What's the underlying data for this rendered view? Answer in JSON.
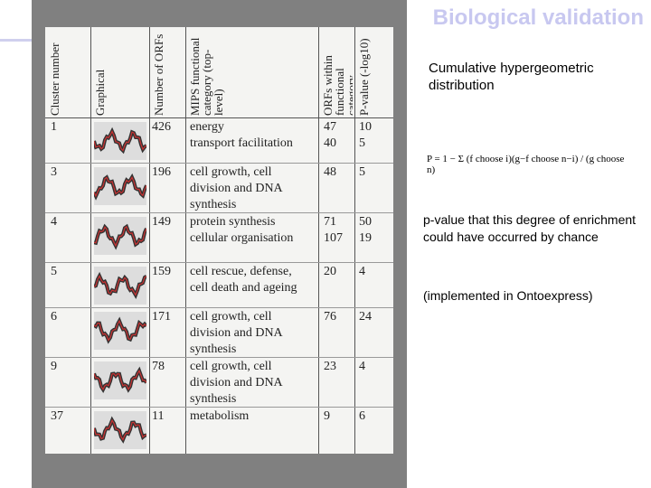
{
  "header": {
    "title": "Biological validation"
  },
  "table": {
    "columns": [
      "Cluster number",
      "Graphical",
      "Number of ORFs",
      "MIPS functional category (top-level)",
      "ORFs within functional category",
      "P-value (-log10)"
    ],
    "rows": [
      [
        "1",
        [
          "426"
        ],
        [
          "energy",
          "transport facilitation"
        ],
        [
          "47",
          "40"
        ],
        [
          "10",
          "5"
        ]
      ],
      [
        "3",
        [
          "196"
        ],
        [
          "cell growth, cell",
          "division and DNA",
          "synthesis"
        ],
        [
          "48"
        ],
        [
          "5"
        ]
      ],
      [
        "4",
        [
          "149"
        ],
        [
          "protein synthesis",
          "cellular organisation"
        ],
        [
          "71",
          "107"
        ],
        [
          "50",
          "19"
        ]
      ],
      [
        "5",
        [
          "159"
        ],
        [
          "cell rescue, defense,",
          "cell death and ageing"
        ],
        [
          "20"
        ],
        [
          "4"
        ]
      ],
      [
        "6",
        [
          "171"
        ],
        [
          "cell growth, cell",
          "division and DNA",
          "synthesis"
        ],
        [
          "76"
        ],
        [
          "24"
        ]
      ],
      [
        "9",
        [
          "78"
        ],
        [
          "cell growth, cell",
          "division and DNA",
          "synthesis"
        ],
        [
          "23"
        ],
        [
          "4"
        ]
      ],
      [
        "37",
        [
          "11"
        ],
        [
          "metabolism"
        ],
        [
          "9"
        ],
        [
          "6"
        ]
      ]
    ]
  },
  "notes": {
    "heading": "Cumulative hypergeometric distribution",
    "formula": "P = 1 − Σ (f choose i)(g−f choose n−i) / (g choose n)",
    "pvalue": "p-value that this degree of enrichment could have occurred by chance",
    "impl": "(implemented in Ontoexpress)"
  }
}
